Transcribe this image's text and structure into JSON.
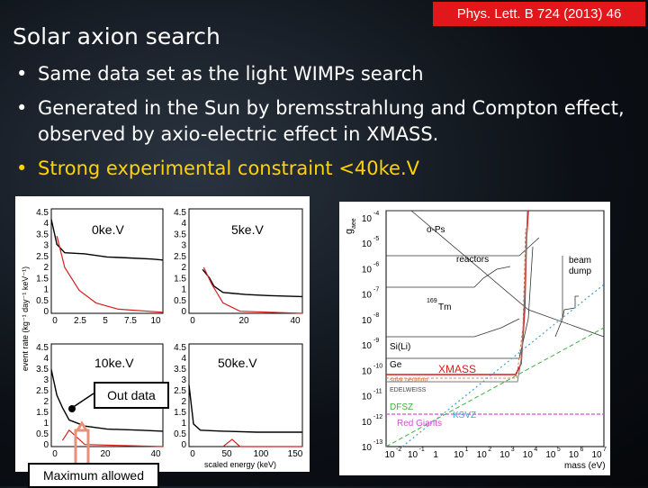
{
  "reference": "Phys. Lett. B 724 (2013) 46",
  "slide_title": "Solar axion search",
  "bullets": [
    {
      "text": "Same data set as the light WIMPs search"
    },
    {
      "text": "Generated in the Sun by bremsstrahlung and Compton effect, observed by axio-electric effect in XMASS."
    },
    {
      "text": "Strong experimental constraint <40ke.V"
    }
  ],
  "bullet_char": "•",
  "colors": {
    "reference_bg": "#e1171b",
    "highlight": "#ffd200",
    "spectrum": "#000000",
    "axion": "#d42020",
    "xmass": "#e01818"
  },
  "callouts": {
    "out_data": "Out data",
    "max_allowed": "Maximum allowed"
  },
  "left_figure": {
    "ylabel": "event rate (kg⁻¹ day⁻¹ keV⁻¹)",
    "xlabel": "scaled energy (keV)",
    "panels": [
      {
        "label": "0ke.V",
        "yticks": [
          "4.5",
          "4",
          "3.5",
          "3",
          "2.5",
          "2",
          "1.5",
          "1",
          "0.5",
          "0"
        ],
        "xticks": [
          "0",
          "2.5",
          "5",
          "7.5",
          "10"
        ]
      },
      {
        "label": "5ke.V",
        "yticks": [
          "4.5",
          "4",
          "3.5",
          "3",
          "2.5",
          "2",
          "1.5",
          "1",
          "0.5",
          "0"
        ],
        "xticks": [
          "0",
          "20",
          "40"
        ]
      },
      {
        "label": "10ke.V",
        "yticks": [
          "4.5",
          "4",
          "3.5",
          "3",
          "2.5",
          "2",
          "1.5",
          "1",
          "0.5",
          "0"
        ],
        "xticks": [
          "0",
          "20",
          "40"
        ]
      },
      {
        "label": "50ke.V",
        "yticks": [
          "4.5",
          "4",
          "3.5",
          "3",
          "2.5",
          "2",
          "1.5",
          "1",
          "0.5",
          "0"
        ],
        "xticks": [
          "0",
          "50",
          "100",
          "150"
        ]
      }
    ]
  },
  "right_figure": {
    "ylabel": "g",
    "ylabel_sub": "aee",
    "xlabel": "mass (eV)",
    "ytick_exps": [
      "-4",
      "-5",
      "-6",
      "-7",
      "-8",
      "-9",
      "-10",
      "-11",
      "-12",
      "-13"
    ],
    "xtick_exps": [
      "-2",
      "-1",
      "",
      "1",
      "2",
      "3",
      "4",
      "5",
      "6",
      "7"
    ],
    "xtick_base": [
      "10",
      "10",
      "1",
      "10",
      "10",
      "10",
      "10",
      "10",
      "10",
      "10"
    ],
    "labels": {
      "ops": "o-Ps",
      "reactors": "reactors",
      "beam": "beam",
      "dump": "dump",
      "tm": "Tm",
      "tm_sup": "169",
      "sili": "Si(Li)",
      "ge": "Ge",
      "xmass": "XMASS",
      "solar": "solar neutrino",
      "edelweiss": "EDELWEISS",
      "dfsz": "DFSZ",
      "ksvz": "KSVZ",
      "redgiants": "Red Giants"
    }
  }
}
